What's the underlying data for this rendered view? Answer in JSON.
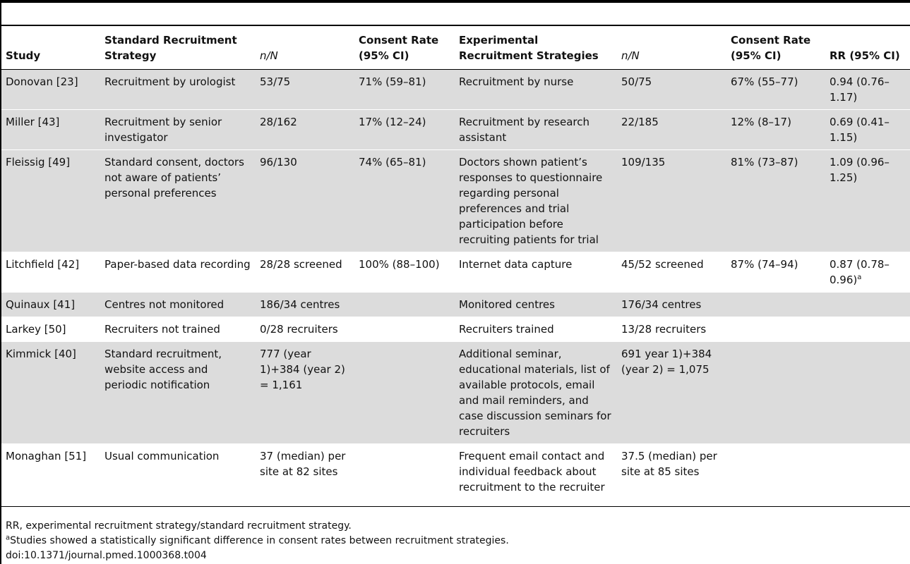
{
  "columns": [
    "Study",
    "Standard Recruitment Strategy",
    "n/N",
    "Consent Rate (95% CI)",
    "Experimental Recruitment Strategies",
    "n/N",
    "Consent Rate (95% CI)",
    "RR (95% CI)"
  ],
  "rows": [
    {
      "study": "Donovan [23]",
      "std": "Recruitment by urologist",
      "std_n": "53/75",
      "std_rate": "71% (59–81)",
      "exp": "Recruitment by nurse",
      "exp_n": "50/75",
      "exp_rate": "67% (55–77)",
      "rr": "0.94 (0.76–1.17)",
      "rr_sup": ""
    },
    {
      "study": "Miller [43]",
      "std": "Recruitment by senior investigator",
      "std_n": "28/162",
      "std_rate": "17% (12–24)",
      "exp": "Recruitment by research assistant",
      "exp_n": "22/185",
      "exp_rate": "12% (8–17)",
      "rr": "0.69 (0.41–1.15)",
      "rr_sup": ""
    },
    {
      "study": "Fleissig [49]",
      "std": "Standard consent, doctors not aware of patients’ personal preferences",
      "std_n": "96/130",
      "std_rate": "74% (65–81)",
      "exp": "Doctors shown patient’s responses to questionnaire regarding personal preferences and trial participation before recruiting patients for trial",
      "exp_n": "109/135",
      "exp_rate": "81% (73–87)",
      "rr": "1.09 (0.96–1.25)",
      "rr_sup": ""
    },
    {
      "study": "Litchfield [42]",
      "std": "Paper-based data recording",
      "std_n": "28/28 screened",
      "std_rate": "100% (88–100)",
      "exp": "Internet data capture",
      "exp_n": "45/52 screened",
      "exp_rate": "87% (74–94)",
      "rr": "0.87 (0.78–0.96)",
      "rr_sup": "a"
    },
    {
      "study": "Quinaux [41]",
      "std": "Centres not monitored",
      "std_n": "186/34 centres",
      "std_rate": "",
      "exp": "Monitored centres",
      "exp_n": "176/34 centres",
      "exp_rate": "",
      "rr": "",
      "rr_sup": ""
    },
    {
      "study": "Larkey [50]",
      "std": "Recruiters not trained",
      "std_n": "0/28 recruiters",
      "std_rate": "",
      "exp": "Recruiters trained",
      "exp_n": "13/28 recruiters",
      "exp_rate": "",
      "rr": "",
      "rr_sup": ""
    },
    {
      "study": "Kimmick [40]",
      "std": "Standard recruitment, website access and periodic notification",
      "std_n": "777 (year 1)+384 (year 2) = 1,161",
      "std_rate": "",
      "exp": "Additional seminar, educational materials, list of available protocols, email and mail reminders, and case discussion seminars for recruiters",
      "exp_n": "691 year 1)+384 (year 2) = 1,075",
      "exp_rate": "",
      "rr": "",
      "rr_sup": ""
    },
    {
      "study": "Monaghan [51]",
      "std": "Usual communication",
      "std_n": "37 (median) per site at 82 sites",
      "std_rate": "",
      "exp": "Frequent email contact and individual feedback about recruitment to the recruiter",
      "exp_n": "37.5 (median) per site at 85 sites",
      "exp_rate": "",
      "rr": "",
      "rr_sup": ""
    }
  ],
  "footnotes": {
    "rr_note": "RR, experimental recruitment strategy/standard recruitment strategy.",
    "a_marker": "a",
    "a_note": "Studies showed a statistically significant difference in consent rates between recruitment strategies.",
    "doi": "doi:10.1371/journal.pmed.1000368.t004"
  }
}
